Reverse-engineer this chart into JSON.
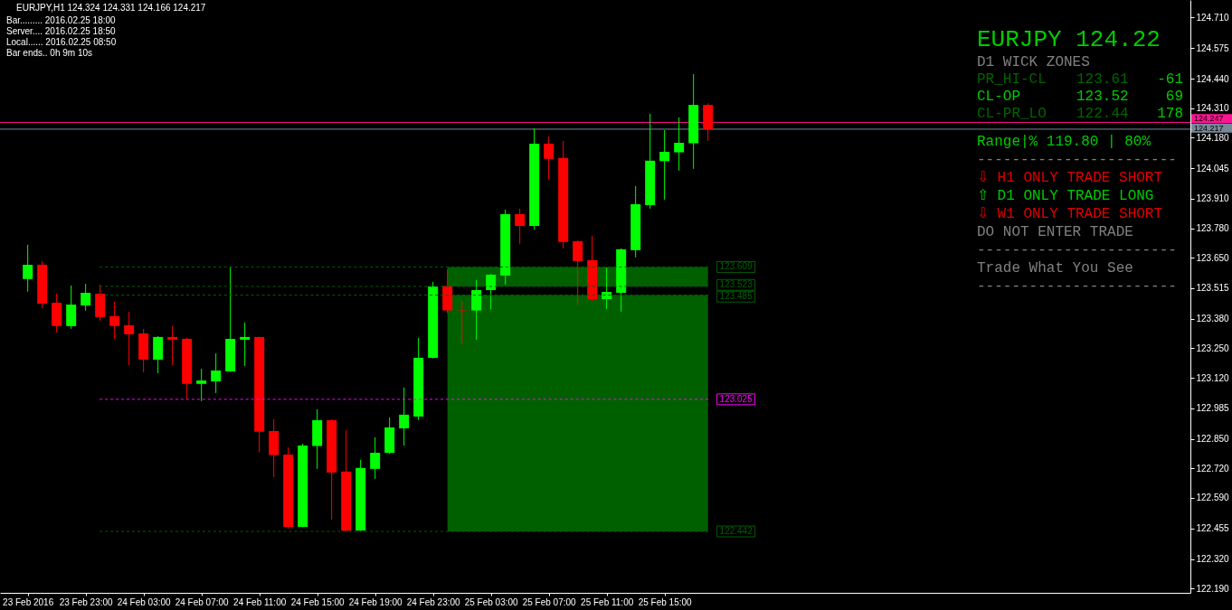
{
  "chart_data": {
    "type": "candlestick",
    "title": "EURJPY,H1 124.324 124.331 124.166 124.217",
    "annotations": [
      "Bar......... 2016.02.25 18:00",
      "Server.... 2016.02.25 18:50",
      "Local...... 2016.02.25 08:50",
      "Bar ends.. 0h 9m 10s",
      "EURJPY 124.22",
      "D1 WICK ZONES",
      "PR_HI-CL",
      "123.61",
      "-61",
      "CL-OP",
      "123.52",
      "69",
      "CL-PR_LO",
      "122.44",
      "178",
      "Range|% 119.80 | 80%",
      "-----------------------",
      "⇩ H1 ONLY TRADE SHORT",
      "⇧ D1 ONLY TRADE LONG",
      "⇩ W1 ONLY TRADE SHORT",
      "DO NOT ENTER TRADE",
      "-----------------------",
      "Trade What You See",
      "-----------------------"
    ],
    "x": [
      "2016-02-23T19:00",
      "2016-02-23T20:00",
      "2016-02-23T21:00",
      "2016-02-23T22:00",
      "2016-02-23T23:00",
      "2016-02-24T00:00",
      "2016-02-24T01:00",
      "2016-02-24T02:00",
      "2016-02-24T03:00",
      "2016-02-24T04:00",
      "2016-02-24T05:00",
      "2016-02-24T06:00",
      "2016-02-24T07:00",
      "2016-02-24T08:00",
      "2016-02-24T09:00",
      "2016-02-24T10:00",
      "2016-02-24T11:00",
      "2016-02-24T12:00",
      "2016-02-24T13:00",
      "2016-02-24T14:00",
      "2016-02-24T15:00",
      "2016-02-24T16:00",
      "2016-02-24T17:00",
      "2016-02-24T18:00",
      "2016-02-24T19:00",
      "2016-02-24T20:00",
      "2016-02-24T21:00",
      "2016-02-24T22:00",
      "2016-02-24T23:00",
      "2016-02-25T00:00",
      "2016-02-25T01:00",
      "2016-02-25T02:00",
      "2016-02-25T03:00",
      "2016-02-25T04:00",
      "2016-02-25T05:00",
      "2016-02-25T06:00",
      "2016-02-25T07:00",
      "2016-02-25T08:00",
      "2016-02-25T09:00",
      "2016-02-25T10:00",
      "2016-02-25T11:00",
      "2016-02-25T12:00",
      "2016-02-25T13:00",
      "2016-02-25T14:00",
      "2016-02-25T15:00",
      "2016-02-25T16:00",
      "2016-02-25T17:00",
      "2016-02-25T18:00"
    ],
    "ohlc": [
      [
        123.556,
        123.707,
        123.5,
        123.619
      ],
      [
        123.619,
        123.635,
        123.427,
        123.447
      ],
      [
        123.451,
        123.491,
        123.32,
        123.348
      ],
      [
        123.348,
        123.527,
        123.336,
        123.443
      ],
      [
        123.439,
        123.535,
        123.416,
        123.495
      ],
      [
        123.491,
        123.531,
        123.372,
        123.388
      ],
      [
        123.392,
        123.455,
        123.292,
        123.348
      ],
      [
        123.352,
        123.412,
        123.176,
        123.312
      ],
      [
        123.316,
        123.336,
        123.144,
        123.2
      ],
      [
        123.2,
        123.304,
        123.14,
        123.3
      ],
      [
        123.3,
        123.348,
        123.176,
        123.288
      ],
      [
        123.292,
        123.296,
        123.029,
        123.093
      ],
      [
        123.093,
        123.16,
        123.017,
        123.108
      ],
      [
        123.104,
        123.228,
        123.053,
        123.152
      ],
      [
        123.148,
        123.609,
        123.146,
        123.292
      ],
      [
        123.288,
        123.364,
        123.172,
        123.3
      ],
      [
        123.3,
        123.302,
        122.791,
        122.882
      ],
      [
        122.885,
        122.937,
        122.682,
        122.779
      ],
      [
        122.781,
        122.813,
        122.454,
        122.462
      ],
      [
        122.462,
        122.829,
        122.46,
        122.821
      ],
      [
        122.819,
        122.981,
        122.718,
        122.933
      ],
      [
        122.933,
        122.937,
        122.494,
        122.702
      ],
      [
        122.706,
        122.889,
        122.442,
        122.445
      ],
      [
        122.446,
        122.758,
        122.444,
        122.722
      ],
      [
        122.718,
        122.857,
        122.674,
        122.789
      ],
      [
        122.789,
        122.945,
        122.785,
        122.901
      ],
      [
        122.897,
        123.077,
        122.821,
        122.957
      ],
      [
        122.949,
        123.296,
        122.933,
        123.208
      ],
      [
        123.208,
        123.543,
        123.205,
        123.523
      ],
      [
        123.525,
        123.599,
        123.405,
        123.417
      ],
      [
        123.419,
        123.459,
        123.268,
        123.417
      ],
      [
        123.417,
        123.551,
        123.288,
        123.507
      ],
      [
        123.507,
        123.578,
        123.421,
        123.575
      ],
      [
        123.571,
        123.862,
        123.531,
        123.842
      ],
      [
        123.842,
        123.866,
        123.711,
        123.79
      ],
      [
        123.79,
        124.221,
        123.774,
        124.153
      ],
      [
        124.153,
        124.185,
        123.994,
        124.086
      ],
      [
        124.09,
        124.165,
        123.691,
        123.719
      ],
      [
        123.723,
        123.725,
        123.441,
        123.635
      ],
      [
        123.639,
        123.746,
        123.458,
        123.467
      ],
      [
        123.467,
        123.607,
        123.423,
        123.499
      ],
      [
        123.495,
        123.691,
        123.412,
        123.687
      ],
      [
        123.683,
        123.966,
        123.651,
        123.886
      ],
      [
        123.882,
        124.285,
        123.866,
        124.078
      ],
      [
        124.076,
        124.213,
        123.906,
        124.117
      ],
      [
        124.115,
        124.269,
        124.034,
        124.157
      ],
      [
        124.155,
        124.46,
        124.042,
        124.324
      ],
      [
        124.324,
        124.331,
        124.166,
        124.217
      ]
    ],
    "colors": [
      "#00ff00",
      "#ff0000",
      "#ff0000",
      "#00ff00",
      "#00ff00",
      "#ff0000",
      "#ff0000",
      "#ff0000",
      "#ff0000",
      "#00ff00",
      "#ff0000",
      "#ff0000",
      "#00ff00",
      "#00ff00",
      "#00ff00",
      "#00ff00",
      "#ff0000",
      "#ff0000",
      "#ff0000",
      "#00ff00",
      "#00ff00",
      "#ff0000",
      "#ff0000",
      "#00ff00",
      "#00ff00",
      "#00ff00",
      "#00ff00",
      "#00ff00",
      "#00ff00",
      "#ff0000",
      "#ff0000",
      "#00ff00",
      "#00ff00",
      "#00ff00",
      "#ff0000",
      "#00ff00",
      "#ff0000",
      "#ff0000",
      "#ff0000",
      "#ff0000",
      "#00ff00",
      "#00ff00",
      "#00ff00",
      "#00ff00",
      "#00ff00",
      "#00ff00",
      "#00ff00",
      "#ff0000"
    ],
    "xlim": [
      "2016-02-23T17:05",
      "2016-02-27T03:20"
    ],
    "xticks": [
      {
        "value": "2016-02-23T19:00",
        "label": "23 Feb 2016"
      },
      {
        "value": "2016-02-23T23:00",
        "label": "23 Feb 23:00"
      },
      {
        "value": "2016-02-24T03:00",
        "label": "24 Feb 03:00"
      },
      {
        "value": "2016-02-24T07:00",
        "label": "24 Feb 07:00"
      },
      {
        "value": "2016-02-24T11:00",
        "label": "24 Feb 11:00"
      },
      {
        "value": "2016-02-24T15:00",
        "label": "24 Feb 15:00"
      },
      {
        "value": "2016-02-24T19:00",
        "label": "24 Feb 19:00"
      },
      {
        "value": "2016-02-24T23:00",
        "label": "24 Feb 23:00"
      },
      {
        "value": "2016-02-25T03:00",
        "label": "25 Feb 03:00"
      },
      {
        "value": "2016-02-25T07:00",
        "label": "25 Feb 07:00"
      },
      {
        "value": "2016-02-25T11:00",
        "label": "25 Feb 11:00"
      },
      {
        "value": "2016-02-25T15:00",
        "label": "25 Feb 15:00"
      }
    ],
    "ylim": [
      122.171,
      124.787
    ],
    "yticks": [
      {
        "value": 124.71,
        "label": "124.710"
      },
      124.575,
      {
        "value": 124.44,
        "label": "124.440"
      },
      {
        "value": 124.31,
        "label": "124.310"
      },
      {
        "value": 124.18,
        "label": "124.180"
      },
      124.045,
      {
        "value": 123.91,
        "label": "123.910"
      },
      {
        "value": 123.78,
        "label": "123.780"
      },
      {
        "value": 123.65,
        "label": "123.650"
      },
      123.515,
      {
        "value": 123.38,
        "label": "123.380"
      },
      {
        "value": 123.25,
        "label": "123.250"
      },
      {
        "value": 123.12,
        "label": "123.120"
      },
      122.985,
      {
        "value": 122.85,
        "label": "122.850"
      },
      {
        "value": 122.72,
        "label": "122.720"
      },
      {
        "value": 122.59,
        "label": "122.590"
      },
      122.455,
      {
        "value": 122.32,
        "label": "122.320"
      },
      {
        "value": 122.19,
        "label": "122.190"
      }
    ],
    "series": [
      {
        "type": "line",
        "x": [
          "2016-02-24T00:00",
          "2016-02-25T00:00",
          "2016-02-25T18:00"
        ],
        "values": [
          123.609,
          123.609,
          123.609
        ],
        "lower": [
          null,
          123.523,
          123.523
        ],
        "upper": [
          null,
          123.609,
          123.609
        ],
        "color": "#006000",
        "line_style": "dashed",
        "value_labels": [
          null,
          null,
          "123.609"
        ]
      },
      {
        "type": "line",
        "x": [
          "2016-02-24T00:00",
          "2016-02-25T18:00"
        ],
        "values": [
          123.523,
          123.523
        ],
        "color": "#006000",
        "line_style": "dashed",
        "value_labels": [
          null,
          "123.523"
        ]
      },
      {
        "type": "line",
        "x": [
          "2016-02-24T00:00",
          "2016-02-25T00:00",
          "2016-02-25T01:00",
          "2016-02-25T02:00",
          "2016-02-25T03:00",
          "2016-02-25T04:00",
          "2016-02-25T05:00",
          "2016-02-25T06:00",
          "2016-02-25T07:00",
          "2016-02-25T08:00",
          "2016-02-25T09:00",
          "2016-02-25T10:00",
          "2016-02-25T11:00",
          "2016-02-25T12:00",
          "2016-02-25T13:00",
          "2016-02-25T14:00",
          "2016-02-25T15:00",
          "2016-02-25T16:00",
          "2016-02-25T17:00",
          "2016-02-25T18:00"
        ],
        "values": [
          123.485,
          123.485,
          123.485,
          123.485,
          123.485,
          123.485,
          123.485,
          123.485,
          123.485,
          123.485,
          123.485,
          123.485,
          123.485,
          123.485,
          123.485,
          123.485,
          123.485,
          123.485,
          123.485,
          123.485
        ],
        "lower": [
          null,
          122.442,
          122.442,
          122.442,
          122.442,
          122.442,
          122.442,
          122.442,
          122.442,
          122.442,
          122.442,
          122.442,
          122.442,
          122.442,
          122.442,
          122.442,
          122.442,
          122.442,
          122.442,
          122.442
        ],
        "upper": [
          null,
          123.485,
          123.485,
          123.485,
          123.485,
          123.485,
          123.485,
          123.485,
          123.485,
          123.485,
          123.485,
          123.485,
          123.485,
          123.485,
          123.485,
          123.485,
          123.485,
          123.485,
          123.485,
          123.485
        ],
        "color": "#006000",
        "line_style": "dashed",
        "value_labels": [
          null,
          null,
          null,
          null,
          null,
          null,
          null,
          null,
          null,
          null,
          null,
          null,
          null,
          null,
          null,
          null,
          null,
          null,
          null,
          "123.485"
        ]
      },
      {
        "type": "line",
        "x": [
          "2016-02-24T00:00",
          "2016-02-25T18:00"
        ],
        "values": [
          123.025,
          123.025
        ],
        "color": "#ff00ff",
        "line_style": "dashed",
        "value_labels": [
          null,
          "123.025"
        ]
      },
      {
        "type": "line",
        "x": [
          "2016-02-24T00:00",
          "2016-02-25T18:00"
        ],
        "values": [
          122.442,
          122.442
        ],
        "color": "#006000",
        "line_style": "dashed",
        "value_labels": [
          null,
          "122.442"
        ]
      }
    ],
    "ref_lines": [
      {
        "axis": "y",
        "value": 124.247,
        "label": "124.247",
        "color": "#ff1493"
      },
      {
        "axis": "y",
        "value": 124.217,
        "label": "124.217",
        "color": "#778899"
      }
    ]
  }
}
